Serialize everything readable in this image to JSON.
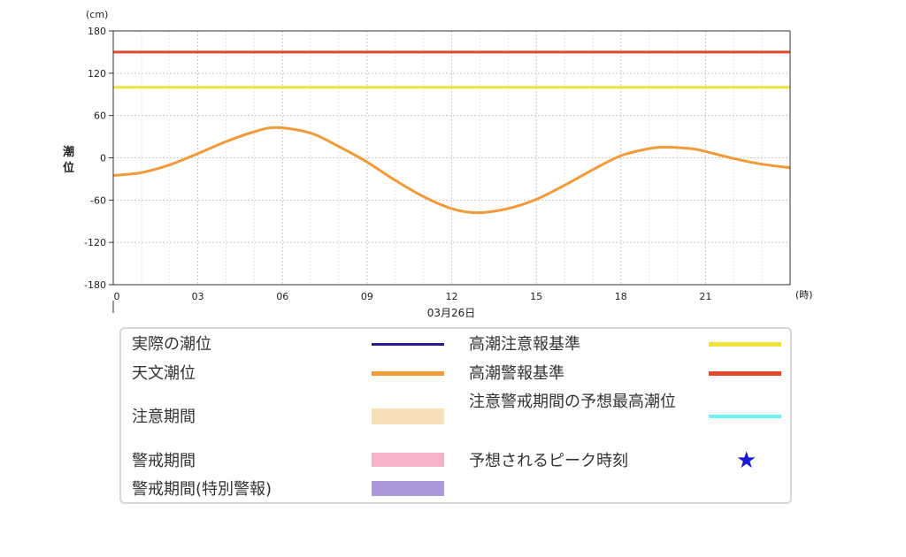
{
  "chart_data": {
    "type": "line",
    "ylabel": "潮位",
    "yunit": "(cm)",
    "xunit": "(時)",
    "date_label": "03月26日",
    "ylim": [
      -180,
      180
    ],
    "yticks": [
      180,
      120,
      60,
      0,
      -60,
      -120,
      -180
    ],
    "xlim": [
      0,
      24
    ],
    "xticks": [
      0,
      3,
      6,
      9,
      12,
      15,
      18,
      21
    ],
    "xtick_labels": [
      "0",
      "03",
      "06",
      "09",
      "12",
      "15",
      "18",
      "21"
    ],
    "grid": true,
    "thresholds": [
      {
        "name": "高潮注意報基準",
        "value": 100,
        "color": "#eee23c"
      },
      {
        "name": "高潮警報基準",
        "value": 150,
        "color": "#e04a2a"
      }
    ],
    "series": [
      {
        "name": "天文潮位",
        "color": "#f09a3a",
        "x": [
          0,
          1,
          2,
          3,
          4,
          5,
          5.8,
          7,
          8,
          9,
          10,
          11,
          12,
          12.9,
          14,
          15,
          16,
          17,
          18,
          19,
          19.6,
          20.5,
          21,
          22,
          23,
          24
        ],
        "y": [
          -25,
          -21,
          -10,
          6,
          23,
          37,
          43,
          35,
          16,
          -6,
          -32,
          -55,
          -72,
          -78,
          -72,
          -59,
          -39,
          -17,
          3,
          13,
          15,
          13,
          9,
          -1,
          -9,
          -14
        ]
      }
    ]
  },
  "legend": [
    {
      "label": "実際の潮位",
      "type": "line",
      "color": "#2b1a8c"
    },
    {
      "label": "天文潮位",
      "type": "line",
      "color": "#f09a3a"
    },
    {
      "label": "注意期間",
      "type": "band",
      "color": "#f7dfb8"
    },
    {
      "label": "警戒期間",
      "type": "band",
      "color": "#f5b3c8"
    },
    {
      "label": "警戒期間(特別警報)",
      "type": "band",
      "color": "#ab99dc"
    },
    {
      "label": "高潮注意報基準",
      "type": "line",
      "color": "#eee23c"
    },
    {
      "label": "高潮警報基準",
      "type": "line",
      "color": "#e04a2a"
    },
    {
      "label": "注意警戒期間の予想最高潮位",
      "type": "line",
      "color": "#6ef2f4"
    },
    {
      "label": "予想されるピーク時刻",
      "type": "star",
      "color": "#1a1ad6"
    }
  ]
}
